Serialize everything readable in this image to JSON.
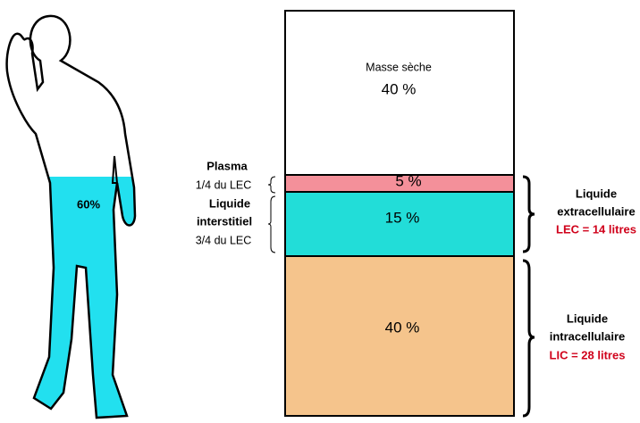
{
  "figure": {
    "label": "60%"
  },
  "bar": {
    "segments": [
      {
        "name": "Masse sèche",
        "percent": "40 %"
      },
      {
        "percent": "5 %"
      },
      {
        "percent": "15 %"
      },
      {
        "percent": "40 %"
      }
    ]
  },
  "left_labels": [
    {
      "title": [
        "Plasma"
      ],
      "detail": "1/4 du LEC"
    },
    {
      "title": [
        "Liquide",
        "interstitiel"
      ],
      "detail": "3/4 du LEC"
    }
  ],
  "right_labels": [
    {
      "title": [
        "Liquide",
        "extracellulaire"
      ],
      "volume": "LEC = 14 litres"
    },
    {
      "title": [
        "Liquide",
        "intracellulaire"
      ],
      "volume": "LIC = 28 litres"
    }
  ]
}
